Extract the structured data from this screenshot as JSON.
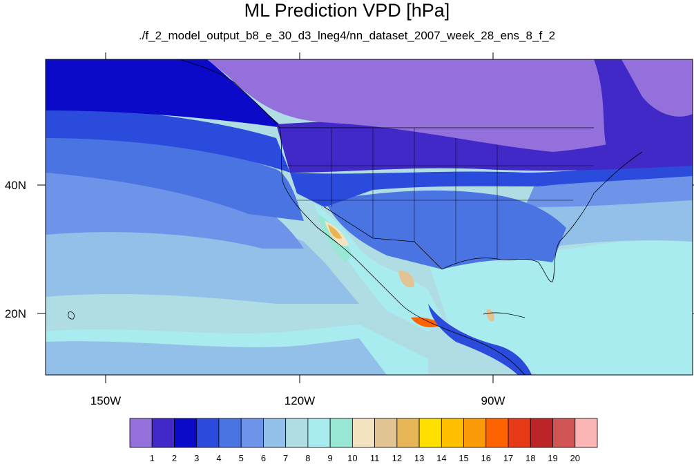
{
  "title": "ML Prediction VPD [hPa]",
  "subtitle": "./f_2_model_output_b8_e_30_d3_lneg4/nn_dataset_2007_week_28_ens_8_f_2",
  "map": {
    "variable": "VPD",
    "units": "hPa",
    "projection": "cylindrical-equidistant",
    "lon_range": [
      -160,
      -60
    ],
    "lat_range": [
      10,
      59
    ],
    "lon_ticks": [
      {
        "value": -150,
        "label": "150W"
      },
      {
        "value": -120,
        "label": "120W"
      },
      {
        "value": -90,
        "label": "90W"
      }
    ],
    "lat_ticks": [
      {
        "value": 40,
        "label": "40N"
      },
      {
        "value": 20,
        "label": "20N"
      }
    ]
  },
  "colorbar": {
    "colors": [
      "#9370db",
      "#4129c7",
      "#0a0ac8",
      "#2a4bdb",
      "#4b74e3",
      "#6e94ea",
      "#93c0e8",
      "#b0dde4",
      "#a9ecf0",
      "#98e7d4",
      "#f3e3c0",
      "#e2c494",
      "#e6b656",
      "#ffdf00",
      "#ffbf00",
      "#fb9a06",
      "#fd6300",
      "#e63a16",
      "#bc2527",
      "#d25555",
      "#fcb5b5"
    ],
    "labels": [
      "1",
      "2",
      "3",
      "4",
      "5",
      "6",
      "7",
      "8",
      "9",
      "10",
      "11",
      "12",
      "13",
      "14",
      "15",
      "16",
      "17",
      "18",
      "19",
      "20"
    ]
  }
}
